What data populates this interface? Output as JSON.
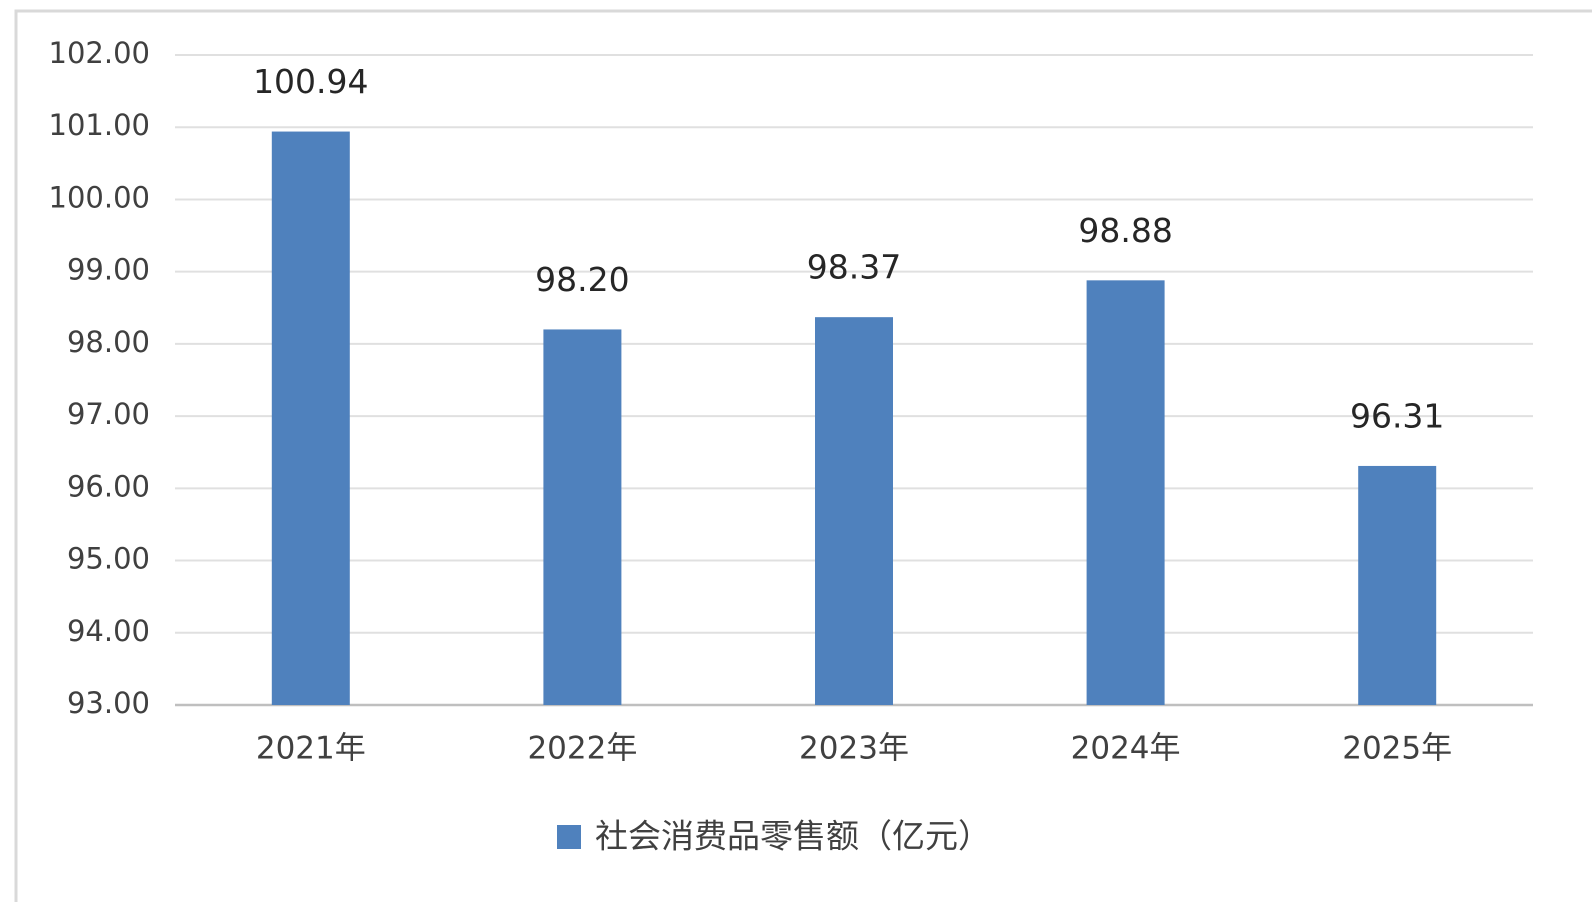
{
  "chart_data": {
    "type": "bar",
    "categories": [
      "2021年",
      "2022年",
      "2023年",
      "2024年",
      "2025年"
    ],
    "series": [
      {
        "name": "社会消费品零售额（亿元）",
        "color": "#4f81bd",
        "values": [
          100.94,
          98.2,
          98.37,
          98.88,
          96.31
        ],
        "value_labels": [
          "100.94",
          "98.20",
          "98.37",
          "98.88",
          "96.31"
        ]
      }
    ],
    "ylim": [
      93,
      102
    ],
    "yticks": [
      {
        "value": 93,
        "label": "93.00"
      },
      {
        "value": 94,
        "label": "94.00"
      },
      {
        "value": 95,
        "label": "95.00"
      },
      {
        "value": 96,
        "label": "96.00"
      },
      {
        "value": 97,
        "label": "97.00"
      },
      {
        "value": 98,
        "label": "98.00"
      },
      {
        "value": 99,
        "label": "99.00"
      },
      {
        "value": 100,
        "label": "100.00"
      },
      {
        "value": 101,
        "label": "101.00"
      },
      {
        "value": 102,
        "label": "102.00"
      }
    ],
    "grid": true,
    "legend": "bottom"
  }
}
